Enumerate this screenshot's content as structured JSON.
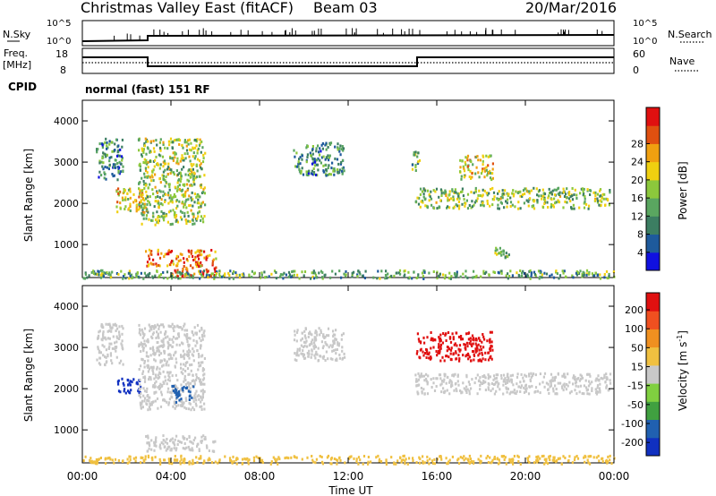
{
  "header": {
    "station_title": "Christmas Valley East (fitACF)",
    "beam_label": "Beam 03",
    "date": "20/Mar/2016"
  },
  "noise_panel": {
    "left_label": "N.Sky",
    "left_ticks": [
      "10^5",
      "10^0"
    ],
    "right_label": "N.Search",
    "right_ticks": [
      "10^5",
      "10^0"
    ]
  },
  "freq_panel": {
    "left_label_1": "Freq.",
    "left_label_2": "[MHz]",
    "left_ticks": [
      "18",
      "8"
    ],
    "right_label": "Nave",
    "right_ticks": [
      "60",
      "0"
    ],
    "cpid_label": "CPID",
    "cpid_text": "normal (fast) 151 RF"
  },
  "chart_data": [
    {
      "type": "heatmap",
      "name": "power",
      "ylabel": "Slant Range [km]",
      "yticks": [
        "1000",
        "2000",
        "3000",
        "4000"
      ],
      "ylim": [
        200,
        4500
      ],
      "xlim": [
        0,
        24
      ],
      "colorbar_label": "Power [dB]",
      "colorbar_ticks": [
        "4",
        "8",
        "12",
        "16",
        "20",
        "24",
        "28"
      ],
      "colorbar_colors": [
        "#1010e0",
        "#1e5a9c",
        "#3c7e62",
        "#5aa660",
        "#8cc83c",
        "#f0d010",
        "#f0a010",
        "#e05010",
        "#e01010"
      ],
      "regions": [
        {
          "t0": 0.6,
          "t1": 1.8,
          "r0": 2600,
          "r1": 3600,
          "level": 0.25
        },
        {
          "t0": 1.5,
          "t1": 2.8,
          "r0": 1800,
          "r1": 2400,
          "level": 0.65
        },
        {
          "t0": 2.5,
          "t1": 5.5,
          "r0": 1500,
          "r1": 3600,
          "level": 0.5
        },
        {
          "t0": 2.8,
          "t1": 6.0,
          "r0": 500,
          "r1": 900,
          "level": 0.8
        },
        {
          "t0": 4.0,
          "t1": 6.0,
          "r0": 250,
          "r1": 500,
          "level": 0.9
        },
        {
          "t0": 9.5,
          "t1": 11.8,
          "r0": 2700,
          "r1": 3500,
          "level": 0.3
        },
        {
          "t0": 14.8,
          "t1": 15.2,
          "r0": 2800,
          "r1": 3300,
          "level": 0.4
        },
        {
          "t0": 15.0,
          "t1": 23.8,
          "r0": 1900,
          "r1": 2400,
          "level": 0.45
        },
        {
          "t0": 17.0,
          "t1": 18.5,
          "r0": 2600,
          "r1": 3200,
          "level": 0.6
        },
        {
          "t0": 18.6,
          "t1": 19.3,
          "r0": 700,
          "r1": 950,
          "level": 0.5
        },
        {
          "t0": 0.0,
          "t1": 24.0,
          "r0": 200,
          "r1": 400,
          "level": 0.35
        }
      ]
    },
    {
      "type": "heatmap",
      "name": "velocity",
      "ylabel": "Slant Range [km]",
      "yticks": [
        "1000",
        "2000",
        "3000",
        "4000"
      ],
      "ylim": [
        200,
        4500
      ],
      "xlim": [
        0,
        24
      ],
      "xlabel": "Time UT",
      "xticks": [
        "00:00",
        "04:00",
        "08:00",
        "12:00",
        "16:00",
        "20:00",
        "00:00"
      ],
      "colorbar_label": "Velocity [m s",
      "colorbar_ticks": [
        "200",
        "100",
        "50",
        "15",
        "-15",
        "-50",
        "-100",
        "-200"
      ],
      "colorbar_colors": [
        "#1030c0",
        "#2060b0",
        "#40a040",
        "#80d040",
        "#c8c8c8",
        "#f0c040",
        "#f09020",
        "#f05020",
        "#e01010"
      ],
      "regions": [
        {
          "t0": 0.6,
          "t1": 1.8,
          "r0": 2600,
          "r1": 3600,
          "color": "#c8c8c8"
        },
        {
          "t0": 1.5,
          "t1": 2.6,
          "r0": 1900,
          "r1": 2300,
          "color": "#1030c0"
        },
        {
          "t0": 2.5,
          "t1": 5.5,
          "r0": 1500,
          "r1": 3600,
          "color": "#c8c8c8"
        },
        {
          "t0": 4.0,
          "t1": 5.0,
          "r0": 1700,
          "r1": 2100,
          "color": "#2060b0"
        },
        {
          "t0": 2.8,
          "t1": 6.0,
          "r0": 500,
          "r1": 900,
          "color": "#c8c8c8"
        },
        {
          "t0": 9.5,
          "t1": 11.8,
          "r0": 2700,
          "r1": 3500,
          "color": "#c8c8c8"
        },
        {
          "t0": 15.0,
          "t1": 18.5,
          "r0": 2700,
          "r1": 3400,
          "color": "#e01010"
        },
        {
          "t0": 15.0,
          "t1": 23.8,
          "r0": 1900,
          "r1": 2400,
          "color": "#c8c8c8"
        },
        {
          "t0": 0.0,
          "t1": 24.0,
          "r0": 200,
          "r1": 400,
          "color": "#f0c040"
        }
      ]
    }
  ]
}
